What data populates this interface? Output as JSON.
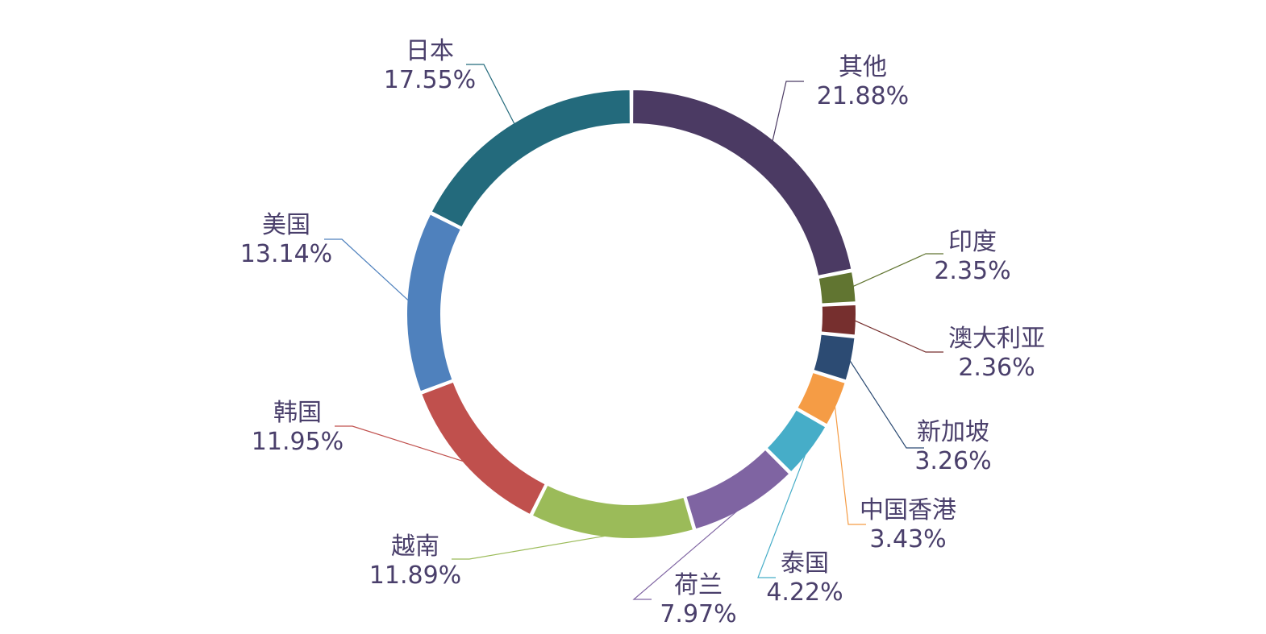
{
  "chart_data": {
    "type": "pie",
    "donut": true,
    "legend": "none",
    "series": [
      {
        "name": "",
        "values": [
          {
            "label": "其他",
            "value": 21.88,
            "value_label": "21.88%",
            "color": "#4b3a63"
          },
          {
            "label": "印度",
            "value": 2.35,
            "value_label": "2.35%",
            "color": "#617531"
          },
          {
            "label": "澳大利亚",
            "value": 2.36,
            "value_label": "2.36%",
            "color": "#762f2e"
          },
          {
            "label": "新加坡",
            "value": 3.26,
            "value_label": "3.26%",
            "color": "#2c4b73"
          },
          {
            "label": "中国香港",
            "value": 3.43,
            "value_label": "3.43%",
            "color": "#f59c45"
          },
          {
            "label": "泰国",
            "value": 4.22,
            "value_label": "4.22%",
            "color": "#46adc8"
          },
          {
            "label": "荷兰",
            "value": 7.97,
            "value_label": "7.97%",
            "color": "#7f64a2"
          },
          {
            "label": "越南",
            "value": 11.89,
            "value_label": "11.89%",
            "color": "#9bbb59"
          },
          {
            "label": "韩国",
            "value": 11.95,
            "value_label": "11.95%",
            "color": "#c0504d"
          },
          {
            "label": "美国",
            "value": 13.14,
            "value_label": "13.14%",
            "color": "#4f81bd"
          },
          {
            "label": "日本",
            "value": 17.55,
            "value_label": "17.55%",
            "color": "#236a7c"
          }
        ]
      }
    ]
  }
}
